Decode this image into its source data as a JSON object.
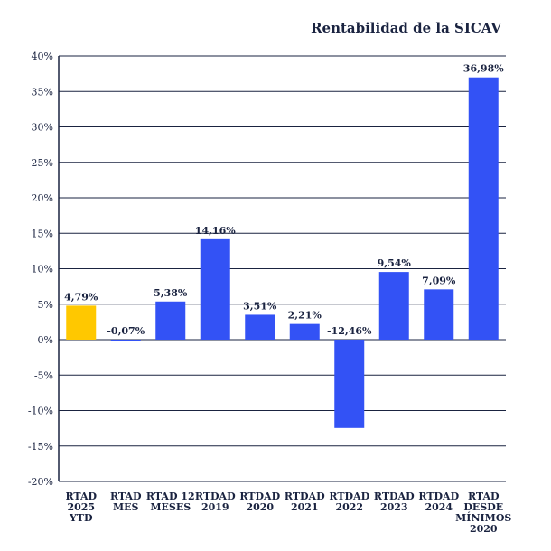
{
  "chart_data": {
    "type": "bar",
    "title": "Rentabilidad de la SICAV",
    "xlabel": "",
    "ylabel": "",
    "ylim": [
      -20,
      40
    ],
    "yticks": [
      40,
      35,
      30,
      25,
      20,
      15,
      10,
      5,
      0,
      -5,
      -10,
      -15,
      -20
    ],
    "ytick_labels": [
      "40%",
      "35%",
      "30%",
      "25%",
      "20%",
      "15%",
      "10%",
      "5%",
      "0%",
      "-5%",
      "-10%",
      "-15%",
      "-20%"
    ],
    "grid": true,
    "categories": [
      [
        "RTAD",
        "2025",
        "YTD"
      ],
      [
        "RTAD",
        "MES"
      ],
      [
        "RTAD 12",
        "MESES"
      ],
      [
        "RTDAD",
        "2019"
      ],
      [
        "RTDAD",
        "2020"
      ],
      [
        "RTDAD",
        "2021"
      ],
      [
        "RTDAD",
        "2022"
      ],
      [
        "RTDAD",
        "2023"
      ],
      [
        "RTDAD",
        "2024"
      ],
      [
        "RTAD",
        "DESDE",
        "MÍNIMOS",
        "2020"
      ]
    ],
    "values": [
      4.79,
      -0.07,
      5.38,
      14.16,
      3.51,
      2.21,
      -12.46,
      9.54,
      7.09,
      36.98
    ],
    "value_labels": [
      "4,79%",
      "-0,07%",
      "5,38%",
      "14,16%",
      "3,51%",
      "2,21%",
      "-12,46%",
      "9,54%",
      "7,09%",
      "36,98%"
    ],
    "colors": [
      "#ffc800",
      "#3352f5",
      "#3352f5",
      "#3352f5",
      "#3352f5",
      "#3352f5",
      "#3352f5",
      "#3352f5",
      "#3352f5",
      "#3352f5"
    ],
    "axis_color": "#1a2340",
    "grid_color": "#1a2340"
  }
}
